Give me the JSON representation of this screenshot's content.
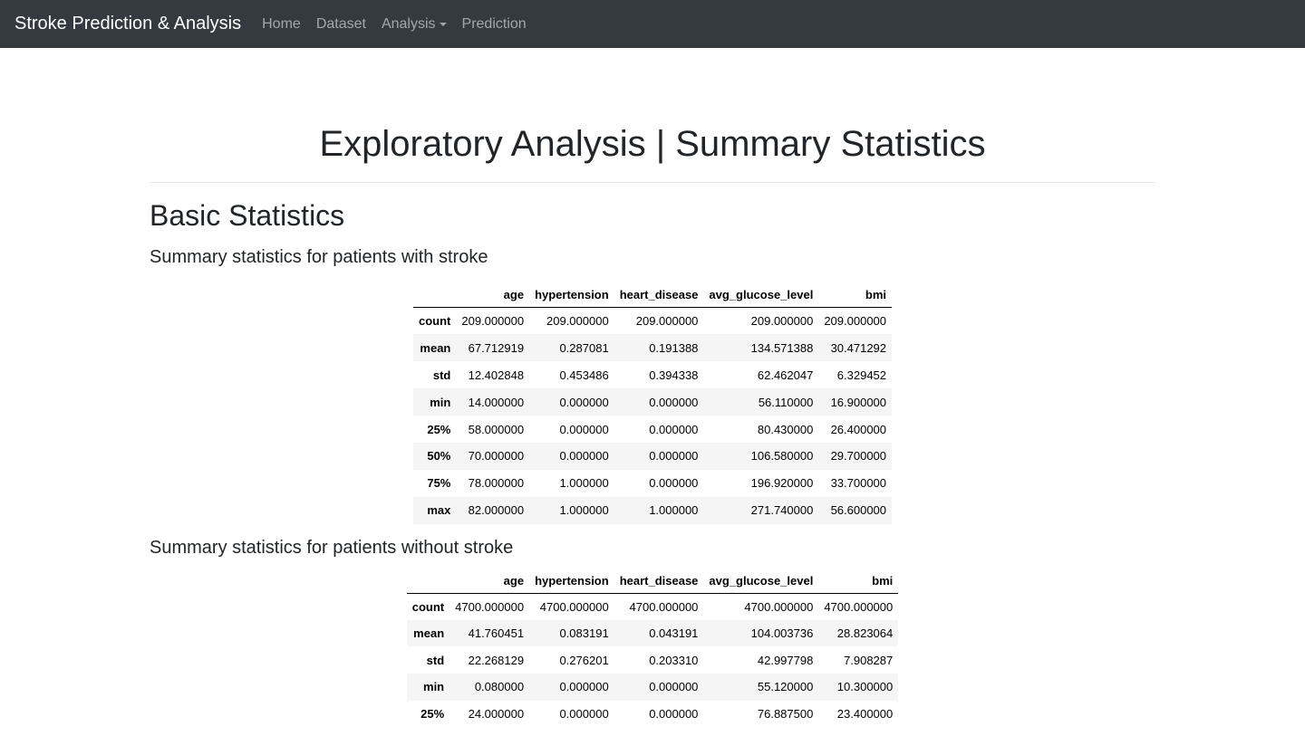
{
  "navbar": {
    "brand": "Stroke Prediction & Analysis",
    "links": [
      "Home",
      "Dataset",
      "Analysis",
      "Prediction"
    ]
  },
  "page": {
    "title": "Exploratory Analysis | Summary Statistics",
    "section_title": "Basic Statistics"
  },
  "tables": [
    {
      "caption": "Summary statistics for patients with stroke",
      "columns": [
        "",
        "age",
        "hypertension",
        "heart_disease",
        "avg_glucose_level",
        "bmi"
      ],
      "rows": [
        [
          "count",
          "209.000000",
          "209.000000",
          "209.000000",
          "209.000000",
          "209.000000"
        ],
        [
          "mean",
          "67.712919",
          "0.287081",
          "0.191388",
          "134.571388",
          "30.471292"
        ],
        [
          "std",
          "12.402848",
          "0.453486",
          "0.394338",
          "62.462047",
          "6.329452"
        ],
        [
          "min",
          "14.000000",
          "0.000000",
          "0.000000",
          "56.110000",
          "16.900000"
        ],
        [
          "25%",
          "58.000000",
          "0.000000",
          "0.000000",
          "80.430000",
          "26.400000"
        ],
        [
          "50%",
          "70.000000",
          "0.000000",
          "0.000000",
          "106.580000",
          "29.700000"
        ],
        [
          "75%",
          "78.000000",
          "1.000000",
          "0.000000",
          "196.920000",
          "33.700000"
        ],
        [
          "max",
          "82.000000",
          "1.000000",
          "1.000000",
          "271.740000",
          "56.600000"
        ]
      ]
    },
    {
      "caption": "Summary statistics for patients without stroke",
      "columns": [
        "",
        "age",
        "hypertension",
        "heart_disease",
        "avg_glucose_level",
        "bmi"
      ],
      "rows": [
        [
          "count",
          "4700.000000",
          "4700.000000",
          "4700.000000",
          "4700.000000",
          "4700.000000"
        ],
        [
          "mean",
          "41.760451",
          "0.083191",
          "0.043191",
          "104.003736",
          "28.823064"
        ],
        [
          "std",
          "22.268129",
          "0.276201",
          "0.203310",
          "42.997798",
          "7.908287"
        ],
        [
          "min",
          "0.080000",
          "0.000000",
          "0.000000",
          "55.120000",
          "10.300000"
        ],
        [
          "25%",
          "24.000000",
          "0.000000",
          "0.000000",
          "76.887500",
          "23.400000"
        ]
      ]
    }
  ]
}
